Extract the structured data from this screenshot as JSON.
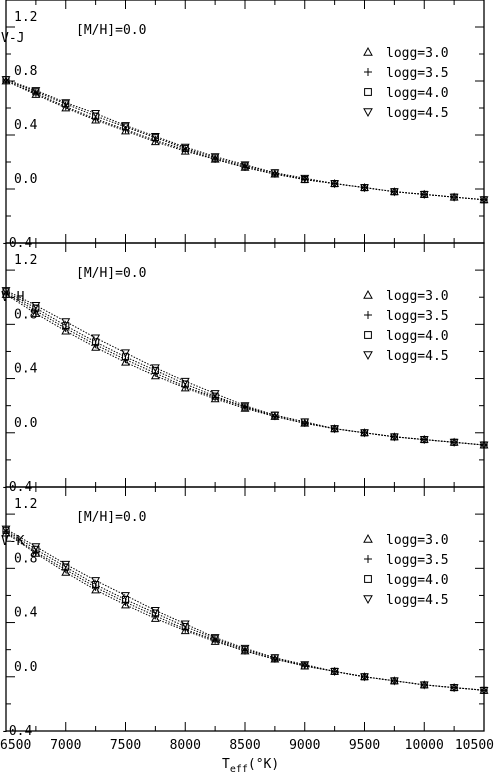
{
  "chart_data": {
    "type": "line",
    "x_ticks": [
      "6500",
      "7000",
      "7500",
      "8000",
      "8500",
      "9000",
      "9500",
      "10000",
      "10500"
    ],
    "x_range": [
      6500,
      10500
    ],
    "x_title": "T",
    "x_title_sub": "eff",
    "x_title_unit": "(°K)",
    "y_range": [
      -0.4,
      1.4
    ],
    "y_ticks": [
      "1.2",
      "0.8",
      "0.4",
      "0.0",
      "-0.4"
    ],
    "marker_shapes": [
      "triangle",
      "plus",
      "square",
      "triangle-down"
    ],
    "panels": [
      {
        "ylabel": "V-J",
        "annotation": "[M/H]=0.0",
        "x": [
          6500,
          6750,
          7000,
          7250,
          7500,
          7750,
          8000,
          8250,
          8500,
          8750,
          9000,
          9250,
          9500,
          9750,
          10000,
          10250,
          10500
        ],
        "series": [
          {
            "name": "logg=3.0",
            "values": [
              0.8,
              0.7,
              0.6,
              0.51,
              0.43,
              0.35,
              0.28,
              0.22,
              0.16,
              0.11,
              0.07,
              0.04,
              0.01,
              -0.02,
              -0.04,
              -0.06,
              -0.08
            ]
          },
          {
            "name": "logg=3.5",
            "values": [
              0.8,
              0.71,
              0.61,
              0.52,
              0.44,
              0.36,
              0.29,
              0.22,
              0.16,
              0.11,
              0.07,
              0.04,
              0.01,
              -0.02,
              -0.04,
              -0.06,
              -0.08
            ]
          },
          {
            "name": "logg=4.0",
            "values": [
              0.81,
              0.72,
              0.63,
              0.54,
              0.46,
              0.38,
              0.3,
              0.23,
              0.17,
              0.12,
              0.07,
              0.04,
              0.01,
              -0.02,
              -0.04,
              -0.06,
              -0.08
            ]
          },
          {
            "name": "logg=4.5",
            "values": [
              0.81,
              0.73,
              0.64,
              0.56,
              0.47,
              0.39,
              0.31,
              0.24,
              0.18,
              0.12,
              0.08,
              0.04,
              0.01,
              -0.02,
              -0.04,
              -0.06,
              -0.08
            ]
          }
        ]
      },
      {
        "ylabel": "V-H",
        "annotation": "[M/H]=0.0",
        "x": [
          6500,
          6750,
          7000,
          7250,
          7500,
          7750,
          8000,
          8250,
          8500,
          8750,
          9000,
          9250,
          9500,
          9750,
          10000,
          10250,
          10500
        ],
        "series": [
          {
            "name": "logg=3.0",
            "values": [
              1.02,
              0.88,
              0.75,
              0.63,
              0.52,
              0.42,
              0.33,
              0.25,
              0.18,
              0.12,
              0.07,
              0.03,
              0.0,
              -0.03,
              -0.05,
              -0.07,
              -0.09
            ]
          },
          {
            "name": "logg=3.5",
            "values": [
              1.03,
              0.9,
              0.77,
              0.65,
              0.54,
              0.44,
              0.34,
              0.26,
              0.19,
              0.12,
              0.07,
              0.03,
              0.0,
              -0.03,
              -0.05,
              -0.07,
              -0.09
            ]
          },
          {
            "name": "logg=4.0",
            "values": [
              1.04,
              0.92,
              0.79,
              0.67,
              0.56,
              0.46,
              0.36,
              0.27,
              0.19,
              0.13,
              0.08,
              0.03,
              0.0,
              -0.03,
              -0.05,
              -0.07,
              -0.09
            ]
          },
          {
            "name": "logg=4.5",
            "values": [
              1.05,
              0.94,
              0.82,
              0.7,
              0.59,
              0.48,
              0.38,
              0.29,
              0.2,
              0.13,
              0.08,
              0.03,
              0.0,
              -0.03,
              -0.05,
              -0.07,
              -0.09
            ]
          }
        ]
      },
      {
        "ylabel": "V-K",
        "annotation": "[M/H]=0.0",
        "x": [
          6500,
          6750,
          7000,
          7250,
          7500,
          7750,
          8000,
          8250,
          8500,
          8750,
          9000,
          9250,
          9500,
          9750,
          10000,
          10250,
          10500
        ],
        "series": [
          {
            "name": "logg=3.0",
            "values": [
              1.06,
              0.91,
              0.77,
              0.64,
              0.53,
              0.43,
              0.34,
              0.26,
              0.19,
              0.13,
              0.08,
              0.04,
              0.0,
              -0.03,
              -0.06,
              -0.08,
              -0.1
            ]
          },
          {
            "name": "logg=3.5",
            "values": [
              1.07,
              0.92,
              0.79,
              0.66,
              0.55,
              0.45,
              0.35,
              0.27,
              0.19,
              0.13,
              0.08,
              0.04,
              0.0,
              -0.03,
              -0.06,
              -0.08,
              -0.1
            ]
          },
          {
            "name": "logg=4.0",
            "values": [
              1.08,
              0.94,
              0.81,
              0.68,
              0.57,
              0.47,
              0.37,
              0.28,
              0.2,
              0.14,
              0.08,
              0.04,
              0.0,
              -0.03,
              -0.06,
              -0.08,
              -0.1
            ]
          },
          {
            "name": "logg=4.5",
            "values": [
              1.09,
              0.96,
              0.83,
              0.71,
              0.6,
              0.49,
              0.39,
              0.29,
              0.21,
              0.14,
              0.09,
              0.04,
              0.0,
              -0.03,
              -0.06,
              -0.08,
              -0.1
            ]
          }
        ]
      }
    ]
  }
}
